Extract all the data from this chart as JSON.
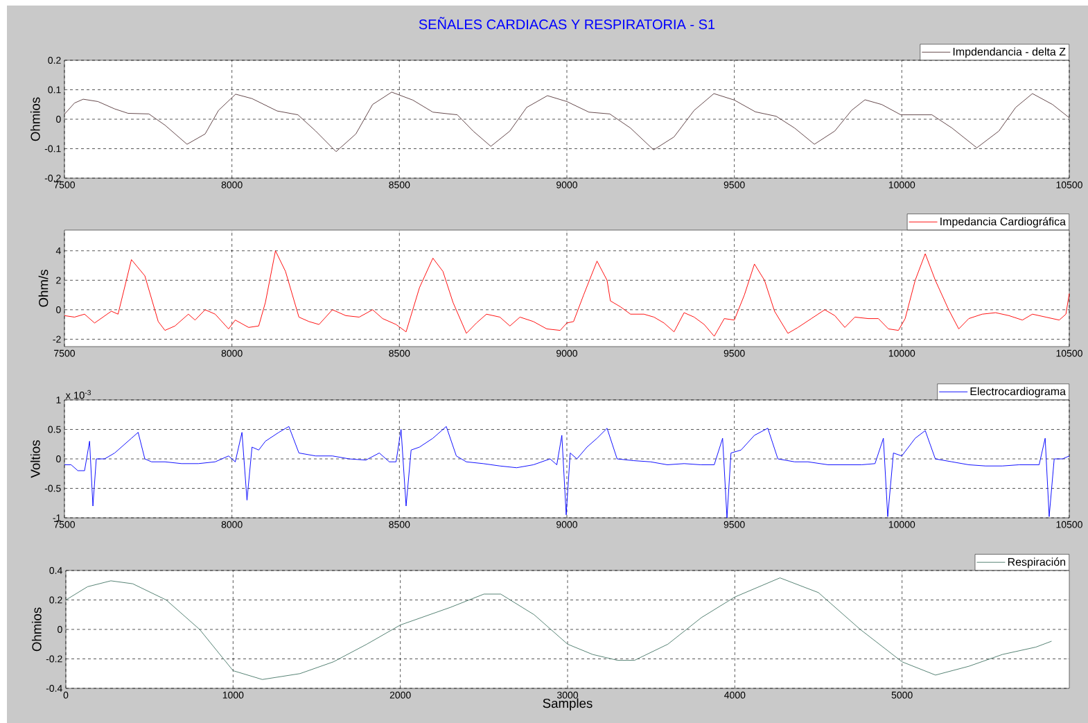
{
  "chart_data": [
    {
      "type": "line",
      "title": "SEÑALES CARDIACAS Y RESPIRATORIA - S1",
      "ylabel": "Ohmios",
      "xlim": [
        7500,
        10500
      ],
      "ylim": [
        -0.2,
        0.2
      ],
      "xticks": [
        7500,
        8000,
        8500,
        9000,
        9500,
        10000,
        10500
      ],
      "yticks": [
        -0.2,
        -0.1,
        0,
        0.1,
        0.2
      ],
      "grid": true,
      "legend": "top right",
      "series": [
        {
          "name": "Impdendancia - delta Z",
          "color": "#5a3c40",
          "x": [
            7500,
            7530,
            7556,
            7600,
            7650,
            7690,
            7752,
            7800,
            7866,
            7920,
            7960,
            8011,
            8060,
            8135,
            8197,
            8250,
            8311,
            8370,
            8420,
            8477,
            8540,
            8600,
            8673,
            8720,
            8773,
            8830,
            8880,
            8942,
            9000,
            9066,
            9128,
            9190,
            9259,
            9320,
            9380,
            9439,
            9500,
            9563,
            9625,
            9680,
            9739,
            9800,
            9850,
            9890,
            9940,
            9997,
            10050,
            10090,
            10150,
            10224,
            10290,
            10340,
            10390,
            10450,
            10500
          ],
          "values": [
            0.017,
            0.055,
            0.068,
            0.06,
            0.035,
            0.02,
            0.018,
            -0.02,
            -0.085,
            -0.05,
            0.03,
            0.085,
            0.07,
            0.028,
            0.015,
            -0.04,
            -0.11,
            -0.05,
            0.05,
            0.092,
            0.065,
            0.024,
            0.015,
            -0.04,
            -0.092,
            -0.04,
            0.04,
            0.08,
            0.06,
            0.024,
            0.018,
            -0.03,
            -0.104,
            -0.06,
            0.03,
            0.087,
            0.065,
            0.025,
            0.01,
            -0.03,
            -0.085,
            -0.04,
            0.03,
            0.066,
            0.05,
            0.015,
            0.015,
            0.015,
            -0.03,
            -0.097,
            -0.04,
            0.04,
            0.087,
            0.05,
            0.005
          ]
        }
      ]
    },
    {
      "type": "line",
      "ylabel": "Ohm/s",
      "xlim": [
        7500,
        10500
      ],
      "ylim": [
        -2.5,
        5.4
      ],
      "xticks": [
        7500,
        8000,
        8500,
        9000,
        9500,
        10000,
        10500
      ],
      "yticks": [
        -2,
        0,
        2,
        4
      ],
      "grid": true,
      "legend": "top right",
      "series": [
        {
          "name": "Impedancia Cardiográfica",
          "color": "#ff0000",
          "x": [
            7500,
            7530,
            7560,
            7590,
            7640,
            7660,
            7700,
            7740,
            7780,
            7800,
            7830,
            7870,
            7890,
            7920,
            7950,
            7990,
            8010,
            8050,
            8080,
            8100,
            8130,
            8160,
            8200,
            8230,
            8260,
            8300,
            8340,
            8380,
            8420,
            8450,
            8490,
            8520,
            8560,
            8600,
            8630,
            8660,
            8700,
            8730,
            8760,
            8800,
            8830,
            8860,
            8900,
            8940,
            8980,
            9000,
            9020,
            9050,
            9090,
            9120,
            9130,
            9160,
            9190,
            9230,
            9260,
            9290,
            9320,
            9350,
            9380,
            9410,
            9440,
            9470,
            9500,
            9530,
            9560,
            9590,
            9620,
            9660,
            9690,
            9730,
            9770,
            9800,
            9830,
            9860,
            9900,
            9930,
            9960,
            9990,
            10010,
            10040,
            10070,
            10100,
            10140,
            10170,
            10200,
            10240,
            10280,
            10320,
            10360,
            10390,
            10430,
            10470,
            10490,
            10500
          ],
          "values": [
            -0.4,
            -0.5,
            -0.3,
            -0.9,
            -0.1,
            -0.3,
            3.4,
            2.3,
            -0.8,
            -1.4,
            -1.1,
            -0.3,
            -0.7,
            0.0,
            -0.3,
            -1.3,
            -0.7,
            -1.2,
            -1.1,
            0.5,
            4.0,
            2.6,
            -0.5,
            -0.8,
            -1.0,
            0.0,
            -0.4,
            -0.5,
            0.0,
            -0.6,
            -1.0,
            -1.5,
            1.5,
            3.5,
            2.6,
            0.5,
            -1.6,
            -0.9,
            -0.3,
            -0.5,
            -1.1,
            -0.5,
            -0.8,
            -1.3,
            -1.4,
            -0.9,
            -0.8,
            1.0,
            3.3,
            2.0,
            0.6,
            0.2,
            -0.3,
            -0.3,
            -0.5,
            -0.9,
            -1.5,
            -0.2,
            -0.5,
            -1.0,
            -1.8,
            -0.6,
            -0.7,
            1.0,
            3.1,
            2.0,
            -0.1,
            -1.6,
            -1.2,
            -0.6,
            0.0,
            -0.4,
            -1.2,
            -0.5,
            -0.6,
            -0.6,
            -1.3,
            -1.4,
            -0.6,
            2.0,
            3.8,
            2.0,
            0.0,
            -1.3,
            -0.6,
            -0.3,
            -0.2,
            -0.4,
            -0.7,
            -0.3,
            -0.5,
            -0.7,
            -0.3,
            1.1
          ]
        }
      ]
    },
    {
      "type": "line",
      "ylabel": "Voltios",
      "annotations": [
        "x 10$^{-3}$"
      ],
      "xlim": [
        7500,
        10500
      ],
      "ylim": [
        -1,
        1
      ],
      "xticks": [
        7500,
        8000,
        8500,
        9000,
        9500,
        10000,
        10500
      ],
      "yticks": [
        -1,
        -0.5,
        0,
        0.5,
        1
      ],
      "grid": true,
      "legend": "top right",
      "series": [
        {
          "name": "Electrocardiograma",
          "color": "#0000ff",
          "x": [
            7500,
            7520,
            7540,
            7560,
            7575,
            7585,
            7595,
            7620,
            7650,
            7680,
            7700,
            7720,
            7740,
            7760,
            7800,
            7850,
            7900,
            7950,
            7990,
            8010,
            8030,
            8045,
            8060,
            8080,
            8100,
            8140,
            8170,
            8200,
            8250,
            8300,
            8350,
            8400,
            8440,
            8470,
            8490,
            8505,
            8520,
            8535,
            8560,
            8600,
            8640,
            8670,
            8700,
            8750,
            8800,
            8850,
            8900,
            8950,
            8970,
            8985,
            8998,
            9010,
            9030,
            9060,
            9090,
            9120,
            9150,
            9200,
            9250,
            9300,
            9350,
            9400,
            9440,
            9465,
            9478,
            9490,
            9520,
            9560,
            9600,
            9630,
            9680,
            9720,
            9780,
            9830,
            9880,
            9920,
            9945,
            9958,
            9975,
            10000,
            10040,
            10070,
            10100,
            10150,
            10200,
            10250,
            10300,
            10350,
            10390,
            10410,
            10428,
            10440,
            10455,
            10480,
            10500
          ],
          "values": [
            -0.1,
            -0.1,
            -0.2,
            -0.2,
            0.3,
            -0.8,
            0.0,
            0.0,
            0.1,
            0.25,
            0.35,
            0.45,
            0.0,
            -0.05,
            -0.05,
            -0.08,
            -0.08,
            -0.05,
            0.05,
            -0.05,
            0.45,
            -0.7,
            0.2,
            0.15,
            0.3,
            0.45,
            0.55,
            0.1,
            0.05,
            0.05,
            0.0,
            -0.02,
            0.1,
            -0.05,
            -0.05,
            0.5,
            -0.8,
            0.15,
            0.2,
            0.35,
            0.55,
            0.05,
            -0.05,
            -0.08,
            -0.12,
            -0.15,
            -0.1,
            0.0,
            -0.1,
            0.4,
            -0.95,
            0.1,
            0.0,
            0.2,
            0.35,
            0.52,
            0.0,
            -0.03,
            -0.05,
            -0.1,
            -0.08,
            -0.1,
            -0.1,
            0.35,
            -1.0,
            0.1,
            0.15,
            0.4,
            0.52,
            0.0,
            -0.05,
            -0.05,
            -0.1,
            -0.1,
            -0.1,
            -0.08,
            0.35,
            -0.98,
            0.1,
            0.05,
            0.35,
            0.48,
            0.0,
            -0.05,
            -0.1,
            -0.12,
            -0.12,
            -0.1,
            -0.1,
            -0.1,
            0.35,
            -0.98,
            0.0,
            0.0,
            0.05
          ]
        }
      ]
    },
    {
      "type": "line",
      "xlabel": "Samples",
      "ylabel": "Ohmios",
      "xlim": [
        0,
        6000
      ],
      "ylim": [
        -0.4,
        0.4
      ],
      "xticks": [
        0,
        1000,
        2000,
        3000,
        4000,
        5000
      ],
      "yticks": [
        -0.4,
        -0.2,
        0,
        0.2,
        0.4
      ],
      "grid": true,
      "legend": "top right",
      "series": [
        {
          "name": "Respiración",
          "color": "#4a7a6a",
          "x": [
            0,
            130,
            269,
            400,
            600,
            800,
            1000,
            1175,
            1400,
            1600,
            1800,
            2000,
            2300,
            2500,
            2600,
            2800,
            3000,
            3150,
            3300,
            3400,
            3600,
            3800,
            4000,
            4270,
            4500,
            4750,
            5000,
            5200,
            5400,
            5600,
            5800,
            5894
          ],
          "values": [
            0.2,
            0.29,
            0.33,
            0.31,
            0.2,
            0.0,
            -0.28,
            -0.34,
            -0.3,
            -0.22,
            -0.1,
            0.03,
            0.15,
            0.24,
            0.24,
            0.1,
            -0.1,
            -0.17,
            -0.21,
            -0.21,
            -0.1,
            0.08,
            0.22,
            0.35,
            0.25,
            0.0,
            -0.22,
            -0.31,
            -0.25,
            -0.17,
            -0.12,
            -0.08
          ]
        }
      ]
    }
  ]
}
